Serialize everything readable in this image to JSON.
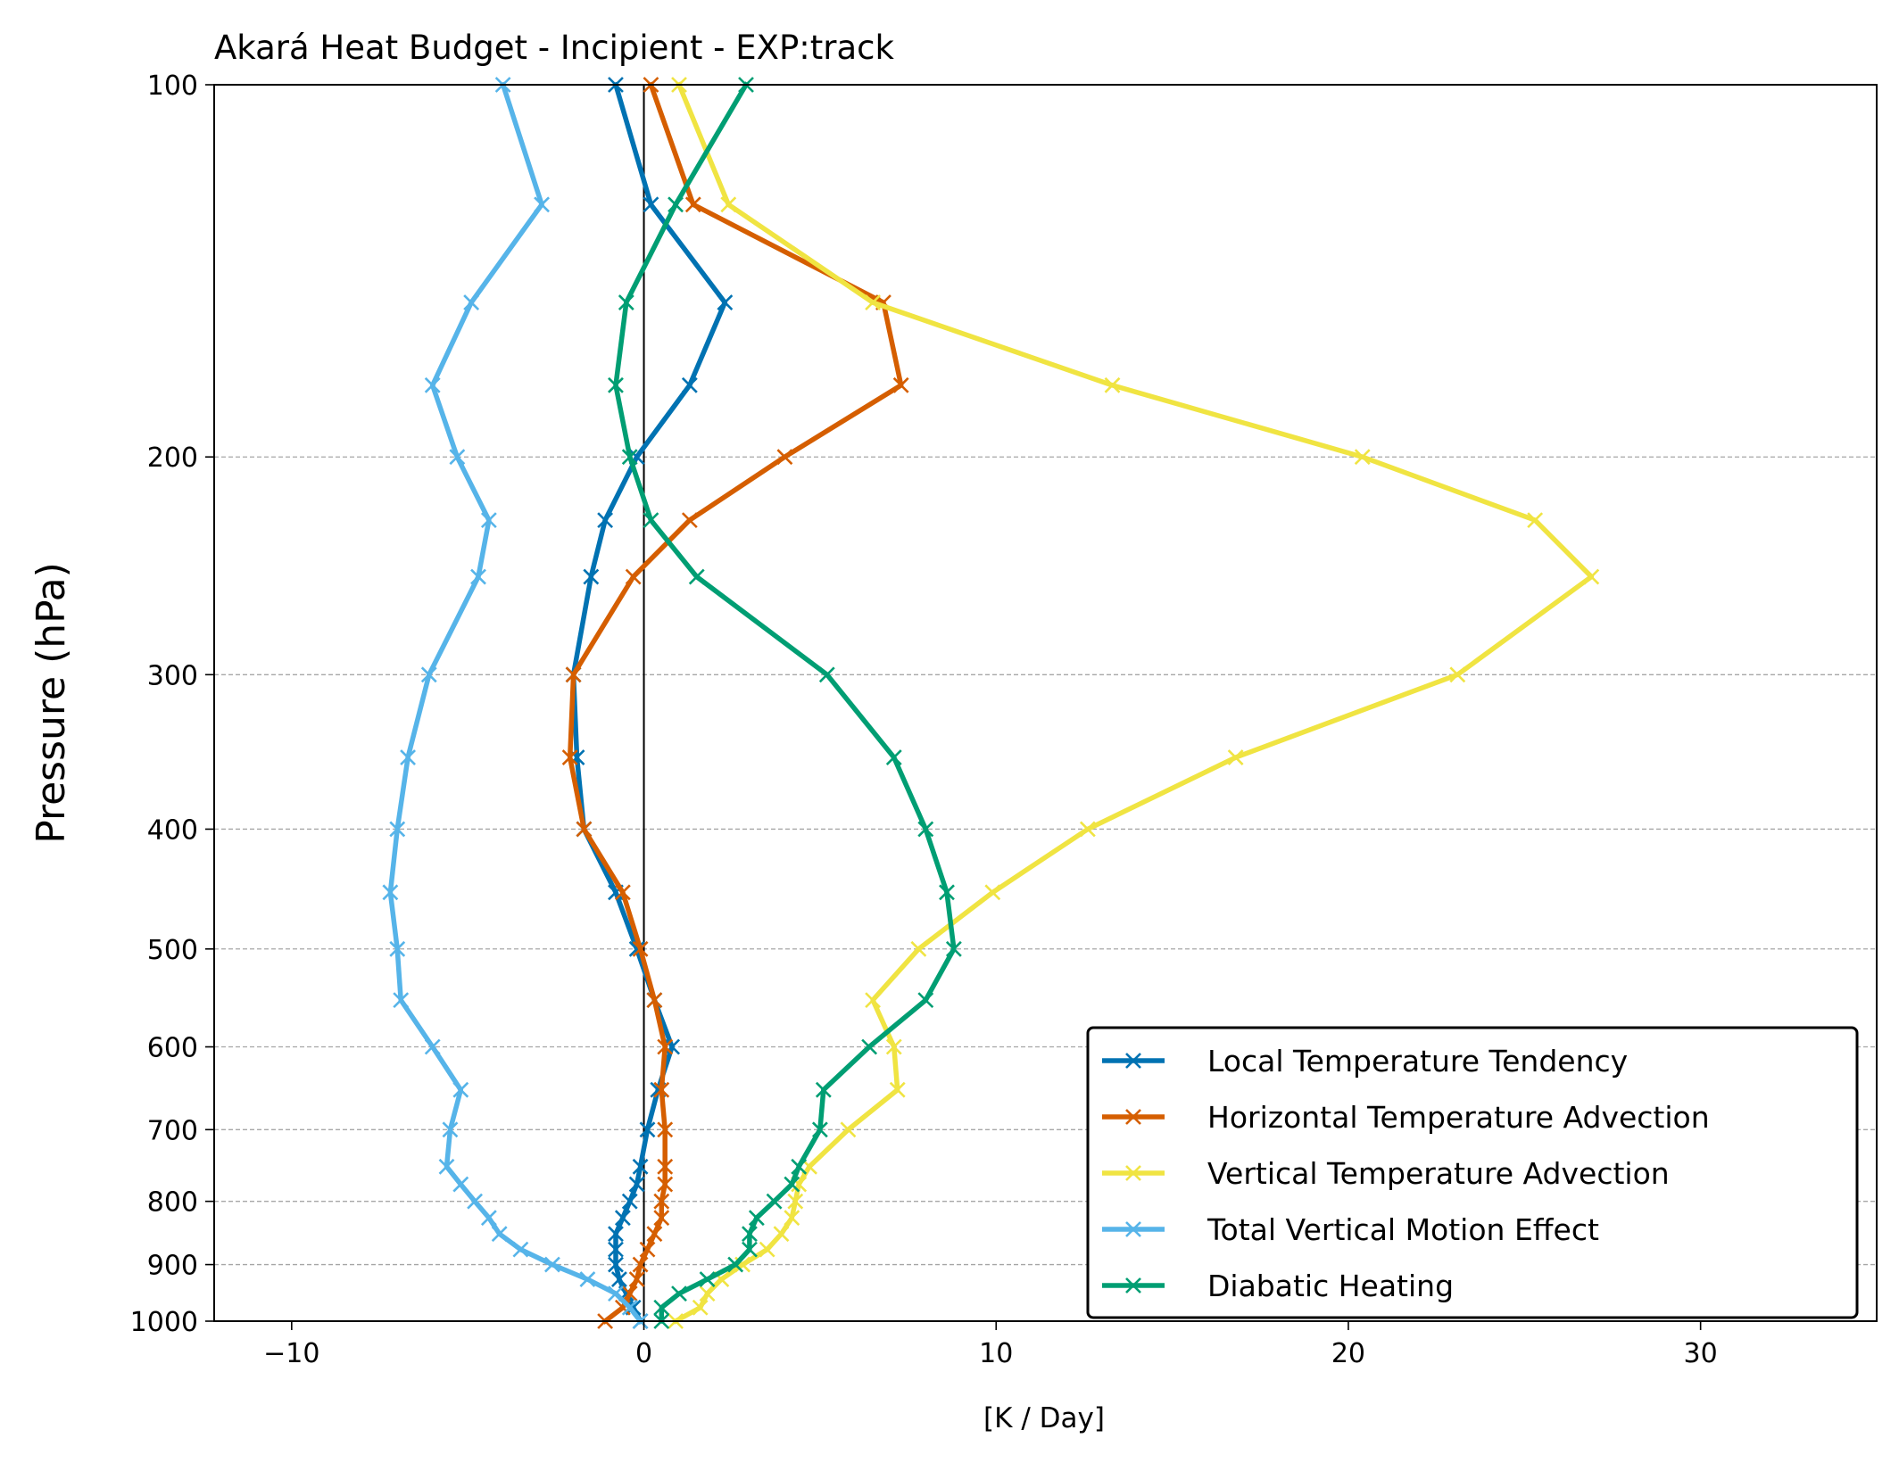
{
  "chart_data": {
    "type": "line",
    "title": "Akará Heat Budget - Incipient - EXP:track",
    "xlabel": "[K / Day]",
    "ylabel": "Pressure (hPa)",
    "xlim": [
      -12.2,
      35
    ],
    "ylim": [
      1000,
      100
    ],
    "yscale": "log",
    "xticks": [
      -10,
      0,
      10,
      20,
      30
    ],
    "xtick_labels": [
      "−10",
      "0",
      "10",
      "20",
      "30"
    ],
    "yticks": [
      100,
      200,
      300,
      400,
      500,
      600,
      700,
      800,
      900,
      1000
    ],
    "ytick_labels": [
      "100",
      "200",
      "300",
      "400",
      "500",
      "600",
      "700",
      "800",
      "900",
      "1000"
    ],
    "grid": "horizontal dashed at y ticks",
    "zero_line": true,
    "legend_position": "lower-right",
    "levels": [
      100,
      125,
      150,
      175,
      200,
      225,
      250,
      300,
      350,
      400,
      450,
      500,
      550,
      600,
      650,
      700,
      750,
      775,
      800,
      825,
      850,
      875,
      900,
      925,
      950,
      975,
      1000
    ],
    "series": [
      {
        "name": "Local Temperature Tendency",
        "color": "#0072b2",
        "values": [
          -0.8,
          0.2,
          2.3,
          1.3,
          -0.2,
          -1.1,
          -1.5,
          -2.0,
          -1.9,
          -1.7,
          -0.8,
          -0.2,
          0.3,
          0.8,
          0.4,
          0.1,
          -0.1,
          -0.2,
          -0.4,
          -0.6,
          -0.8,
          -0.8,
          -0.8,
          -0.7,
          -0.5,
          -0.3,
          -0.1
        ]
      },
      {
        "name": "Horizontal Temperature Advection",
        "color": "#d55e00",
        "values": [
          0.2,
          1.4,
          6.8,
          7.3,
          4.0,
          1.3,
          -0.3,
          -2.0,
          -2.1,
          -1.7,
          -0.6,
          -0.1,
          0.3,
          0.6,
          0.5,
          0.6,
          0.6,
          0.6,
          0.5,
          0.5,
          0.3,
          0.1,
          -0.1,
          -0.2,
          -0.4,
          -0.6,
          -1.1
        ]
      },
      {
        "name": "Vertical Temperature Advection",
        "color": "#f0e442",
        "values": [
          1.0,
          2.4,
          6.5,
          13.3,
          20.4,
          25.3,
          26.9,
          23.1,
          16.8,
          12.6,
          9.9,
          7.8,
          6.5,
          7.1,
          7.2,
          5.8,
          4.7,
          4.4,
          4.3,
          4.2,
          3.9,
          3.5,
          2.8,
          2.2,
          1.8,
          1.6,
          0.9
        ]
      },
      {
        "name": "Total Vertical Motion Effect",
        "color": "#56b4e9",
        "values": [
          -4.0,
          -2.9,
          -4.9,
          -6.0,
          -5.3,
          -4.4,
          -4.7,
          -6.1,
          -6.7,
          -7.0,
          -7.2,
          -7.0,
          -6.9,
          -6.0,
          -5.2,
          -5.5,
          -5.6,
          -5.2,
          -4.8,
          -4.4,
          -4.1,
          -3.5,
          -2.6,
          -1.6,
          -0.8,
          -0.4,
          -0.1
        ]
      },
      {
        "name": "Diabatic Heating",
        "color": "#009e73",
        "values": [
          2.9,
          0.9,
          -0.5,
          -0.8,
          -0.4,
          0.2,
          1.5,
          5.2,
          7.1,
          8.0,
          8.6,
          8.8,
          8.0,
          6.4,
          5.1,
          5.0,
          4.4,
          4.2,
          3.7,
          3.2,
          3.0,
          3.0,
          2.6,
          1.8,
          1.0,
          0.5,
          0.5
        ]
      }
    ]
  }
}
